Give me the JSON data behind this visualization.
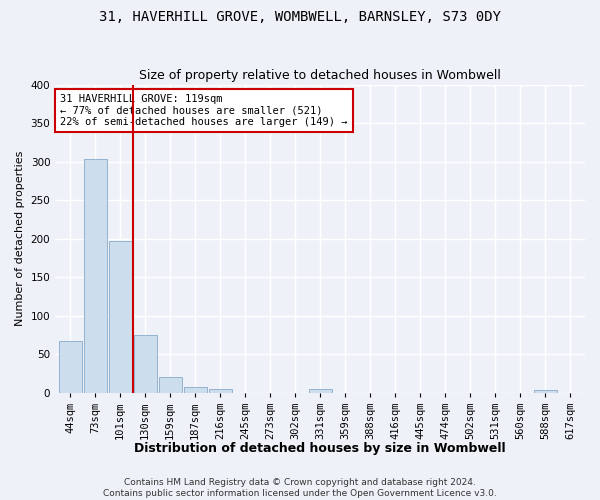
{
  "title": "31, HAVERHILL GROVE, WOMBWELL, BARNSLEY, S73 0DY",
  "subtitle": "Size of property relative to detached houses in Wombwell",
  "xlabel_bottom": "Distribution of detached houses by size in Wombwell",
  "ylabel": "Number of detached properties",
  "bar_color": "#ccdded",
  "bar_edge_color": "#88aac8",
  "vline_color": "#cc0000",
  "annotation_text": "31 HAVERHILL GROVE: 119sqm\n← 77% of detached houses are smaller (521)\n22% of semi-detached houses are larger (149) →",
  "annotation_box_color": "#ffffff",
  "annotation_box_edge": "#cc0000",
  "categories": [
    "44sqm",
    "73sqm",
    "101sqm",
    "130sqm",
    "159sqm",
    "187sqm",
    "216sqm",
    "245sqm",
    "273sqm",
    "302sqm",
    "331sqm",
    "359sqm",
    "388sqm",
    "416sqm",
    "445sqm",
    "474sqm",
    "502sqm",
    "531sqm",
    "560sqm",
    "588sqm",
    "617sqm"
  ],
  "values": [
    67,
    303,
    197,
    75,
    20,
    8,
    5,
    0,
    0,
    0,
    5,
    0,
    0,
    0,
    0,
    0,
    0,
    0,
    0,
    4,
    0
  ],
  "ylim": [
    0,
    400
  ],
  "yticks": [
    0,
    50,
    100,
    150,
    200,
    250,
    300,
    350,
    400
  ],
  "background_color": "#eef2f8",
  "grid_color": "#ffffff",
  "footer_text": "Contains HM Land Registry data © Crown copyright and database right 2024.\nContains public sector information licensed under the Open Government Licence v3.0.",
  "title_fontsize": 10,
  "subtitle_fontsize": 9,
  "axis_label_fontsize": 8,
  "tick_fontsize": 7.5,
  "annotation_fontsize": 7.5,
  "footer_fontsize": 6.5
}
